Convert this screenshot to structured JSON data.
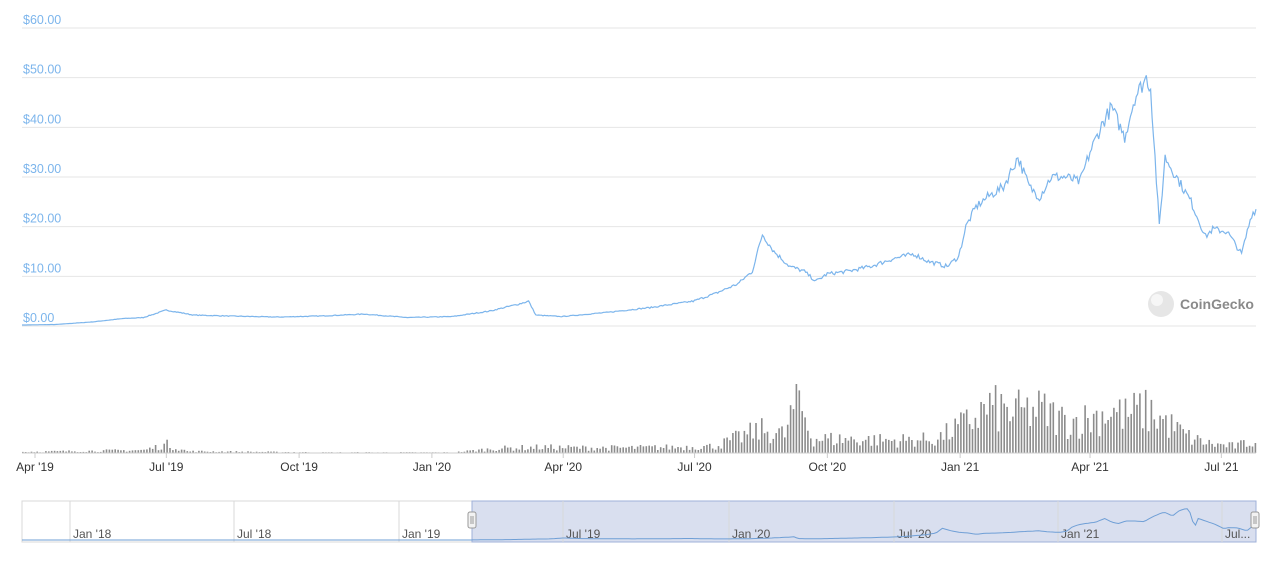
{
  "colors": {
    "price_line": "#7cb5ec",
    "volume_bar": "#8c8c8c",
    "grid": "#e6e6e6",
    "axis_label": "#7cb5ec",
    "navigator_mask": "#d5dced",
    "navigator_line": "#6f9fd6"
  },
  "watermark": {
    "text": "CoinGecko",
    "icon": "gecko-logo-icon"
  },
  "navigator": {
    "ticks": [
      "Jan '18",
      "Jul '18",
      "Jan '19",
      "Jul '19",
      "Jan '20",
      "Jul '20",
      "Jan '21",
      "Jul..."
    ],
    "handles": [
      "left-handle",
      "right-handle"
    ]
  },
  "chart_data": {
    "type": "line",
    "title": "",
    "xlabel": "",
    "ylabel": "",
    "y_tick_labels": [
      "$0.00",
      "$10.00",
      "$20.00",
      "$30.00",
      "$40.00",
      "$50.00",
      "$60.00"
    ],
    "ylim": [
      0,
      60
    ],
    "x_tick_labels": [
      "Apr '19",
      "Jul '19",
      "Oct '19",
      "Jan '20",
      "Apr '20",
      "Jul '20",
      "Oct '20",
      "Jan '21",
      "Apr '21",
      "Jul '21"
    ],
    "xlim": [
      "2019-03-23",
      "2021-07-25"
    ],
    "grid": true,
    "legend": "none",
    "series": [
      {
        "values_kind": "price",
        "x": [
          "2019-03-23",
          "2019-04-15",
          "2019-05-10",
          "2019-06-01",
          "2019-06-15",
          "2019-07-01",
          "2019-07-20",
          "2019-08-15",
          "2019-09-15",
          "2019-10-15",
          "2019-11-15",
          "2019-12-15",
          "2020-01-15",
          "2020-02-10",
          "2020-03-01",
          "2020-03-08",
          "2020-03-13",
          "2020-03-31",
          "2020-04-30",
          "2020-05-31",
          "2020-06-30",
          "2020-07-15",
          "2020-07-31",
          "2020-08-10",
          "2020-08-17",
          "2020-08-25",
          "2020-09-05",
          "2020-09-15",
          "2020-09-23",
          "2020-10-01",
          "2020-10-15",
          "2020-10-31",
          "2020-11-15",
          "2020-11-30",
          "2020-12-10",
          "2020-12-23",
          "2020-12-31",
          "2021-01-05",
          "2021-01-12",
          "2021-01-20",
          "2021-01-31",
          "2021-02-10",
          "2021-02-18",
          "2021-02-25",
          "2021-03-05",
          "2021-03-15",
          "2021-03-25",
          "2021-04-01",
          "2021-04-10",
          "2021-04-16",
          "2021-04-25",
          "2021-05-02",
          "2021-05-10",
          "2021-05-13",
          "2021-05-19",
          "2021-05-23",
          "2021-05-31",
          "2021-06-10",
          "2021-06-20",
          "2021-06-25",
          "2021-07-05",
          "2021-07-15",
          "2021-07-22",
          "2021-07-25"
        ],
        "values": [
          0.2,
          0.3,
          0.8,
          1.5,
          1.7,
          3.2,
          2.2,
          2.0,
          1.8,
          2.0,
          2.4,
          1.7,
          1.9,
          3.0,
          4.4,
          5.0,
          2.2,
          1.9,
          2.7,
          3.7,
          5.0,
          6.5,
          8.5,
          11.0,
          18.5,
          15.0,
          12.0,
          11.0,
          9.0,
          10.5,
          11.0,
          12.0,
          13.5,
          14.5,
          13.0,
          12.0,
          14.0,
          20.0,
          24.0,
          26.0,
          28.0,
          34.0,
          28.0,
          26.0,
          30.0,
          30.0,
          29.0,
          35.0,
          41.0,
          44.0,
          38.0,
          46.0,
          50.0,
          48.0,
          20.0,
          34.0,
          30.0,
          25.0,
          18.0,
          19.5,
          19.0,
          14.5,
          22.5,
          23.5
        ]
      },
      {
        "values_kind": "volume",
        "x": [
          "2019-03-23",
          "2019-06-15",
          "2019-07-01",
          "2019-07-15",
          "2019-10-15",
          "2020-01-15",
          "2020-02-15",
          "2020-03-15",
          "2020-04-15",
          "2020-05-15",
          "2020-06-15",
          "2020-07-15",
          "2020-08-01",
          "2020-08-15",
          "2020-09-01",
          "2020-09-10",
          "2020-09-20",
          "2020-10-15",
          "2020-11-15",
          "2020-12-15",
          "2021-01-10",
          "2021-01-20",
          "2021-02-05",
          "2021-02-25",
          "2021-03-15",
          "2021-04-01",
          "2021-04-15",
          "2021-04-25",
          "2021-05-05",
          "2021-05-15",
          "2021-05-25",
          "2021-06-10",
          "2021-06-25",
          "2021-07-10",
          "2021-07-25"
        ],
        "values": [
          0.2,
          0.5,
          1.5,
          0.3,
          0.1,
          0.1,
          0.8,
          1.0,
          0.9,
          0.9,
          1.0,
          1.2,
          2.8,
          4.0,
          3.2,
          10.0,
          2.5,
          2.4,
          2.2,
          2.4,
          6.0,
          8.0,
          7.0,
          7.5,
          5.5,
          6.0,
          7.5,
          6.5,
          7.5,
          6.8,
          5.0,
          2.5,
          1.5,
          1.2,
          2.2
        ]
      }
    ]
  }
}
